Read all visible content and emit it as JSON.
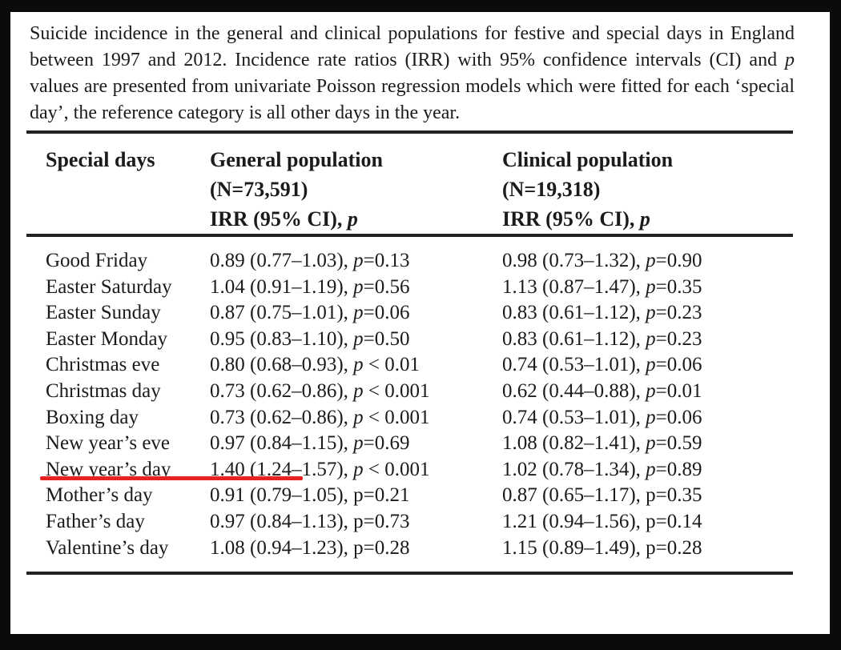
{
  "page": {
    "caption": {
      "before": "Suicide incidence in the general and clinical populations for festive and special days in England between 1997 and 2012. Incidence rate ratios (IRR) with 95% confidence intervals (CI) and ",
      "p_word": "p",
      "after": " values are presented from univariate Poisson regression models which were fitted for each ‘special day’, the reference category is all other days in the year."
    },
    "table": {
      "p_label": "p",
      "header": {
        "col_day": "Special days",
        "col_general": {
          "title": "General population",
          "n": "(N=73,591)",
          "stat": "IRR (95% CI),"
        },
        "col_clinical": {
          "title": "Clinical population",
          "n": "(N=19,318)",
          "stat": "IRR (95% CI),"
        }
      },
      "rows": [
        {
          "day": "Good Friday",
          "general": {
            "ci": "0.89 (0.77–1.03),",
            "p": "=0.13"
          },
          "clinical": {
            "ci": "0.98 (0.73–1.32),",
            "p": "=0.90"
          },
          "p_style": "italic"
        },
        {
          "day": "Easter Saturday",
          "general": {
            "ci": "1.04 (0.91–1.19),",
            "p": "=0.56"
          },
          "clinical": {
            "ci": "1.13 (0.87–1.47),",
            "p": "=0.35"
          },
          "p_style": "italic"
        },
        {
          "day": "Easter Sunday",
          "general": {
            "ci": "0.87 (0.75–1.01),",
            "p": "=0.06"
          },
          "clinical": {
            "ci": "0.83 (0.61–1.12),",
            "p": "=0.23"
          },
          "p_style": "italic"
        },
        {
          "day": "Easter Monday",
          "general": {
            "ci": "0.95 (0.83–1.10),",
            "p": "=0.50"
          },
          "clinical": {
            "ci": "0.83 (0.61–1.12),",
            "p": "=0.23"
          },
          "p_style": "italic"
        },
        {
          "day": "Christmas eve",
          "general": {
            "ci": "0.80 (0.68–0.93),",
            "p": " < 0.01"
          },
          "clinical": {
            "ci": "0.74 (0.53–1.01),",
            "p": "=0.06"
          },
          "p_style": "italic"
        },
        {
          "day": "Christmas day",
          "general": {
            "ci": "0.73 (0.62–0.86),",
            "p": " < 0.001"
          },
          "clinical": {
            "ci": "0.62 (0.44–0.88),",
            "p": "=0.01"
          },
          "p_style": "italic"
        },
        {
          "day": "Boxing day",
          "general": {
            "ci": "0.73 (0.62–0.86),",
            "p": " < 0.001"
          },
          "clinical": {
            "ci": "0.74 (0.53–1.01),",
            "p": "=0.06"
          },
          "p_style": "italic"
        },
        {
          "day": "New year’s eve",
          "general": {
            "ci": "0.97 (0.84–1.15),",
            "p": "=0.69"
          },
          "clinical": {
            "ci": "1.08 (0.82–1.41),",
            "p": "=0.59"
          },
          "p_style": "italic"
        },
        {
          "day": "New year’s day",
          "general": {
            "ci": "1.40 (1.24–1.57),",
            "p": " < 0.001"
          },
          "clinical": {
            "ci": "1.02 (0.78–1.34),",
            "p": "=0.89"
          },
          "p_style": "italic",
          "underline": true
        },
        {
          "day": "Mother’s day",
          "general": {
            "ci": "0.91 (0.79–1.05),",
            "p": "=0.21"
          },
          "clinical": {
            "ci": "0.87 (0.65–1.17),",
            "p": "=0.35"
          },
          "p_style": "normal"
        },
        {
          "day": "Father’s day",
          "general": {
            "ci": "0.97 (0.84–1.13),",
            "p": "=0.73"
          },
          "clinical": {
            "ci": "1.21 (0.94–1.56),",
            "p": "=0.14"
          },
          "p_style": "normal"
        },
        {
          "day": "Valentine’s day",
          "general": {
            "ci": "1.08 (0.94–1.23),",
            "p": "=0.28"
          },
          "clinical": {
            "ci": "1.15 (0.89–1.49),",
            "p": "=0.28"
          },
          "p_style": "normal"
        }
      ]
    },
    "annotation": {
      "type": "underline",
      "row": "New year’s day",
      "color": "#e82121",
      "note": "red underline highlighting the New year’s day general-population result"
    }
  },
  "colors": {
    "frame": "#0b0b0b",
    "paper": "#ffffff",
    "text": "#1b1b1b",
    "rule": "#222222",
    "underline_red": "#e82121"
  }
}
